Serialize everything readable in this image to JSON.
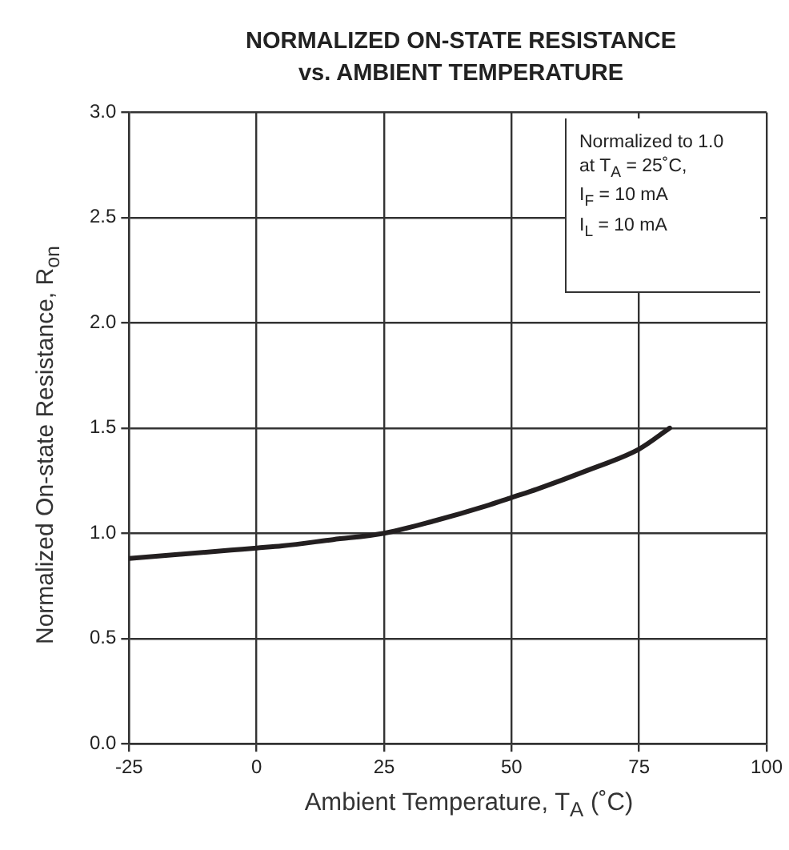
{
  "chart_data": {
    "type": "line",
    "title": "NORMALIZED ON-STATE RESISTANCE\nvs. AMBIENT TEMPERATURE",
    "xlabel": "Ambient Temperature, T$_{A}$ (˚C)",
    "ylabel": "Normalized On-state Resistance, R$_{on}$",
    "annotations": [
      "Normalized to 1.0\nat T$_{A}$ = 25˚C,\nI$_{F}$ = 10 mA\nI$_{L}$ = 10 mA"
    ],
    "x": [
      -25,
      -15,
      -5,
      0,
      5,
      15,
      25,
      35,
      45,
      50,
      55,
      65,
      75,
      81
    ],
    "series": [
      {
        "color": "#231f20",
        "values": [
          0.88,
          0.9,
          0.92,
          0.93,
          0.94,
          0.97,
          1.0,
          1.06,
          1.13,
          1.17,
          1.21,
          1.3,
          1.4,
          1.5
        ]
      }
    ],
    "xlim": [
      -25,
      100
    ],
    "xticks": [
      -25,
      0,
      25,
      50,
      75,
      100
    ],
    "ylim": [
      0,
      3
    ],
    "yticks": [
      {
        "value": 0,
        "label": "0.0"
      },
      {
        "value": 0.5,
        "label": "0.5"
      },
      {
        "value": 1,
        "label": "1.0"
      },
      {
        "value": 1.5,
        "label": "1.5"
      },
      {
        "value": 2,
        "label": "2.0"
      },
      {
        "value": 2.5,
        "label": "2.5"
      },
      {
        "value": 3,
        "label": "3.0"
      }
    ],
    "grid": true,
    "legend": false,
    "marker": "none",
    "line_style": "solid"
  }
}
